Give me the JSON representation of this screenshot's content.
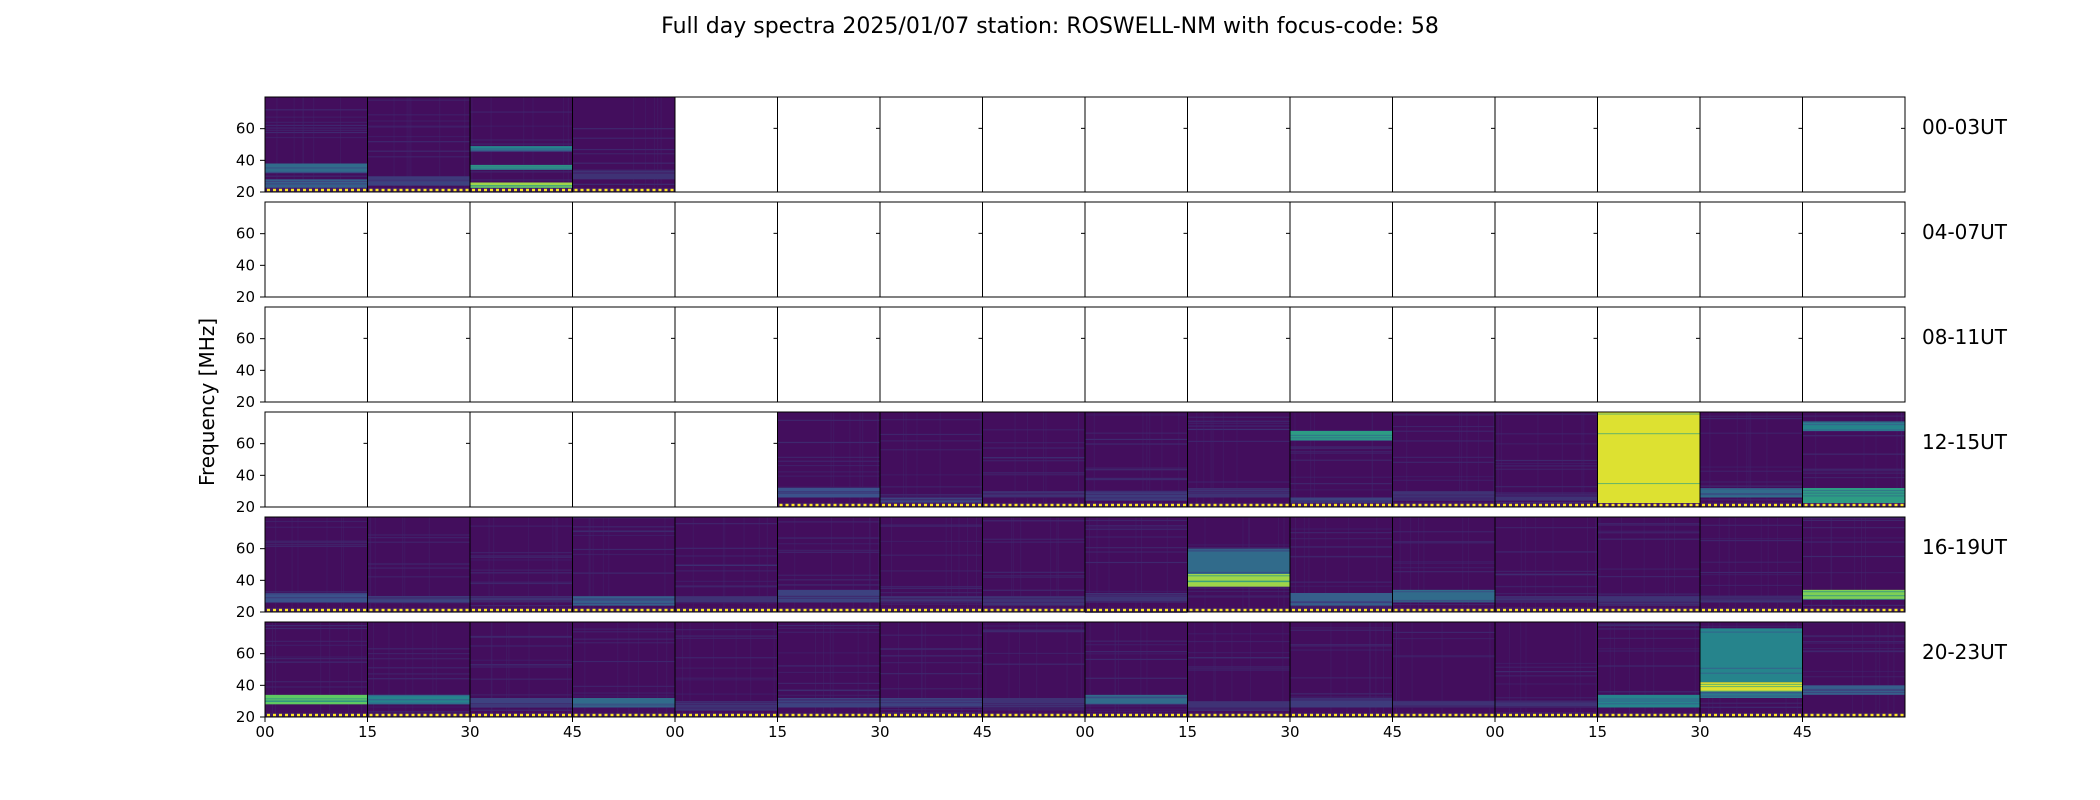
{
  "chart_data": {
    "type": "heatmap",
    "title": "Full day spectra 2025/01/07 station: ROSWELL-NM with focus-code: 58",
    "ylabel": "Frequency [MHz]",
    "ylim": [
      20,
      80
    ],
    "yticks": [
      20,
      40,
      60
    ],
    "xticks": [
      "00",
      "15",
      "30",
      "45",
      "00",
      "15",
      "30",
      "45",
      "00",
      "15",
      "30",
      "45",
      "00",
      "15",
      "30",
      "45"
    ],
    "row_labels": [
      "00-03UT",
      "04-07UT",
      "08-11UT",
      "12-15UT",
      "16-19UT",
      "20-23UT"
    ],
    "panels_per_row": 16,
    "panel_minutes": 15,
    "colormap": "viridis",
    "rows": [
      {
        "label": "00-03UT",
        "has_data": [
          true,
          true,
          true,
          true,
          false,
          false,
          false,
          false,
          false,
          false,
          false,
          false,
          false,
          false,
          false,
          false
        ],
        "bands": [
          [
            [
              32,
              38,
              0.35
            ],
            [
              22,
              28,
              0.3
            ]
          ],
          [
            [
              24,
              30,
              0.2
            ]
          ],
          [
            [
              22,
              26,
              0.85
            ],
            [
              34,
              37,
              0.55
            ],
            [
              46,
              49,
              0.45
            ]
          ],
          [
            [
              28,
              34,
              0.15
            ]
          ],
          [],
          [],
          [],
          [],
          [],
          [],
          [],
          [],
          [],
          [],
          [],
          []
        ]
      },
      {
        "label": "04-07UT",
        "has_data": [
          false,
          false,
          false,
          false,
          false,
          false,
          false,
          false,
          false,
          false,
          false,
          false,
          false,
          false,
          false,
          false
        ],
        "bands": [
          [],
          [],
          [],
          [],
          [],
          [],
          [],
          [],
          [],
          [],
          [],
          [],
          [],
          [],
          [],
          []
        ]
      },
      {
        "label": "08-11UT",
        "has_data": [
          false,
          false,
          false,
          false,
          false,
          false,
          false,
          false,
          false,
          false,
          false,
          false,
          false,
          false,
          false,
          false
        ],
        "bands": [
          [],
          [],
          [],
          [],
          [],
          [],
          [],
          [],
          [],
          [],
          [],
          [],
          [],
          [],
          [],
          []
        ]
      },
      {
        "label": "12-15UT",
        "has_data": [
          false,
          false,
          false,
          false,
          false,
          true,
          true,
          true,
          true,
          true,
          true,
          true,
          true,
          true,
          true,
          true
        ],
        "bands": [
          [],
          [],
          [],
          [],
          [],
          [
            [
              26,
              32,
              0.25
            ]
          ],
          [
            [
              22,
              26,
              0.2
            ]
          ],
          [
            [
              26,
              30,
              0.15
            ]
          ],
          [
            [
              24,
              30,
              0.18
            ]
          ],
          [
            [
              26,
              32,
              0.15
            ]
          ],
          [
            [
              62,
              68,
              0.55
            ],
            [
              22,
              26,
              0.2
            ]
          ],
          [
            [
              24,
              30,
              0.15
            ]
          ],
          [
            [
              24,
              28,
              0.15
            ]
          ],
          [
            [
              22,
              80,
              0.95
            ]
          ],
          [
            [
              26,
              32,
              0.35
            ]
          ],
          [
            [
              22,
              32,
              0.55
            ],
            [
              68,
              74,
              0.45
            ]
          ]
        ]
      },
      {
        "label": "16-19UT",
        "has_data": [
          true,
          true,
          true,
          true,
          true,
          true,
          true,
          true,
          true,
          true,
          true,
          true,
          true,
          true,
          true,
          true
        ],
        "bands": [
          [
            [
              26,
              32,
              0.25
            ]
          ],
          [
            [
              26,
              30,
              0.2
            ]
          ],
          [
            [
              26,
              30,
              0.15
            ]
          ],
          [
            [
              24,
              30,
              0.3
            ]
          ],
          [
            [
              26,
              30,
              0.15
            ]
          ],
          [
            [
              26,
              34,
              0.2
            ]
          ],
          [
            [
              26,
              30,
              0.15
            ]
          ],
          [
            [
              24,
              30,
              0.15
            ]
          ],
          [
            [
              26,
              32,
              0.15
            ]
          ],
          [
            [
              36,
              44,
              0.85
            ],
            [
              44,
              60,
              0.35
            ]
          ],
          [
            [
              24,
              32,
              0.3
            ]
          ],
          [
            [
              26,
              34,
              0.35
            ]
          ],
          [
            [
              26,
              30,
              0.15
            ]
          ],
          [
            [
              24,
              30,
              0.15
            ]
          ],
          [
            [
              26,
              30,
              0.15
            ]
          ],
          [
            [
              28,
              34,
              0.8
            ]
          ]
        ]
      },
      {
        "label": "20-23UT",
        "has_data": [
          true,
          true,
          true,
          true,
          true,
          true,
          true,
          true,
          true,
          true,
          true,
          true,
          true,
          true,
          true,
          true
        ],
        "bands": [
          [
            [
              28,
              34,
              0.75
            ]
          ],
          [
            [
              28,
              34,
              0.45
            ]
          ],
          [
            [
              26,
              32,
              0.2
            ]
          ],
          [
            [
              26,
              32,
              0.35
            ]
          ],
          [
            [
              24,
              30,
              0.15
            ]
          ],
          [
            [
              26,
              32,
              0.2
            ]
          ],
          [
            [
              26,
              32,
              0.2
            ]
          ],
          [
            [
              26,
              32,
              0.15
            ]
          ],
          [
            [
              28,
              34,
              0.35
            ]
          ],
          [
            [
              24,
              30,
              0.15
            ]
          ],
          [
            [
              26,
              32,
              0.18
            ]
          ],
          [
            [
              26,
              30,
              0.15
            ]
          ],
          [
            [
              26,
              30,
              0.15
            ]
          ],
          [
            [
              26,
              34,
              0.45
            ]
          ],
          [
            [
              36,
              42,
              0.95
            ],
            [
              42,
              76,
              0.45
            ],
            [
              32,
              36,
              0.4
            ]
          ],
          [
            [
              34,
              40,
              0.3
            ]
          ]
        ]
      }
    ]
  }
}
